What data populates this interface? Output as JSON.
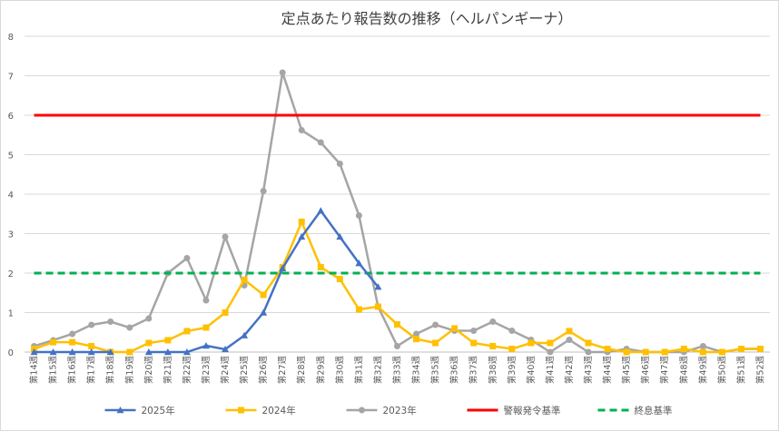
{
  "chart_data": {
    "type": "line",
    "title": "定点あたり報告数の推移（ヘルパンギーナ）",
    "xlabel": "",
    "ylabel": "",
    "ylim": [
      0,
      8
    ],
    "yticks": [
      "0",
      "1",
      "2",
      "3",
      "4",
      "5",
      "6",
      "7",
      "8"
    ],
    "grid": true,
    "legend_position": "bottom",
    "categories": [
      "第14週",
      "第15週",
      "第16週",
      "第17週",
      "第18週",
      "第19週",
      "第20週",
      "第21週",
      "第22週",
      "第23週",
      "第24週",
      "第25週",
      "第26週",
      "第27週",
      "第28週",
      "第29週",
      "第30週",
      "第31週",
      "第32週",
      "第33週",
      "第34週",
      "第35週",
      "第36週",
      "第37週",
      "第38週",
      "第39週",
      "第40週",
      "第41週",
      "第42週",
      "第43週",
      "第44週",
      "第45週",
      "第46週",
      "第47週",
      "第48週",
      "第49週",
      "第50週",
      "第51週",
      "第52週"
    ],
    "series": [
      {
        "name": "2025年",
        "color": "#4472c4",
        "marker": "triangle",
        "dash": false,
        "values": [
          0,
          0,
          0,
          0,
          0,
          null,
          0,
          0,
          0,
          0.16,
          0.07,
          0.42,
          1.0,
          2.12,
          2.92,
          3.58,
          2.92,
          2.25,
          1.65,
          null,
          null,
          null,
          null,
          null,
          null,
          null,
          null,
          null,
          null,
          null,
          null,
          null,
          null,
          null,
          null,
          null,
          null,
          null,
          null
        ]
      },
      {
        "name": "2024年",
        "color": "#ffc000",
        "marker": "square",
        "dash": false,
        "values": [
          0.08,
          0.25,
          0.25,
          0.15,
          0.0,
          0.0,
          0.23,
          0.3,
          0.53,
          0.62,
          1.0,
          1.83,
          1.45,
          2.15,
          3.3,
          2.15,
          1.85,
          1.08,
          1.15,
          0.7,
          0.33,
          0.23,
          0.6,
          0.23,
          0.15,
          0.08,
          0.23,
          0.23,
          0.53,
          0.23,
          0.08,
          0.0,
          0.0,
          0.0,
          0.08,
          0.0,
          0.0,
          0.08,
          0.08
        ]
      },
      {
        "name": "2023年",
        "color": "#a5a5a5",
        "marker": "circle",
        "dash": false,
        "values": [
          0.15,
          0.3,
          0.46,
          0.69,
          0.77,
          0.62,
          0.85,
          2.0,
          2.38,
          1.31,
          2.92,
          1.69,
          4.08,
          7.08,
          5.62,
          5.31,
          4.77,
          3.46,
          1.15,
          0.15,
          0.46,
          0.69,
          0.54,
          0.54,
          0.77,
          0.54,
          0.31,
          0.0,
          0.31,
          0.0,
          0.0,
          0.08,
          0.0,
          0.0,
          0.0,
          0.15,
          0.0,
          0.08,
          0.08
        ]
      },
      {
        "name": "警報発令基準",
        "color": "#ff0000",
        "marker": "none",
        "dash": false,
        "constant": 6
      },
      {
        "name": "終息基準",
        "color": "#00b050",
        "marker": "none",
        "dash": true,
        "constant": 2
      }
    ]
  }
}
